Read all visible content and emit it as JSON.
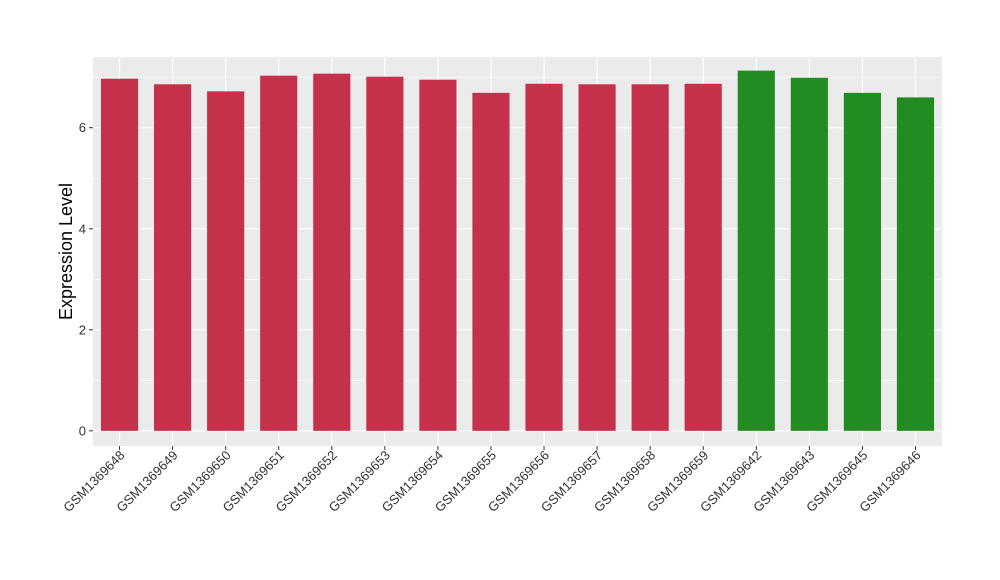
{
  "chart_data": {
    "type": "bar",
    "title": "",
    "xlabel": "",
    "ylabel": "Expression Level",
    "ylim": [
      -0.3,
      7.4
    ],
    "yticks": [
      0,
      2,
      4,
      6
    ],
    "grid": true,
    "legend": "none",
    "colors": {
      "group1": "#C5304A",
      "group2": "#228B22",
      "panel": "#EBEBEB",
      "grid": "#FFFFFF"
    },
    "categories": [
      "GSM1369648",
      "GSM1369649",
      "GSM1369650",
      "GSM1369651",
      "GSM1369652",
      "GSM1369653",
      "GSM1369654",
      "GSM1369655",
      "GSM1369656",
      "GSM1369657",
      "GSM1369658",
      "GSM1369659",
      "GSM1369642",
      "GSM1369643",
      "GSM1369645",
      "GSM1369646"
    ],
    "values": [
      6.97,
      6.86,
      6.72,
      7.03,
      7.07,
      7.01,
      6.95,
      6.69,
      6.87,
      6.86,
      6.86,
      6.87,
      7.13,
      6.99,
      6.69,
      6.6
    ],
    "groups": [
      "group1",
      "group1",
      "group1",
      "group1",
      "group1",
      "group1",
      "group1",
      "group1",
      "group1",
      "group1",
      "group1",
      "group1",
      "group2",
      "group2",
      "group2",
      "group2"
    ]
  }
}
